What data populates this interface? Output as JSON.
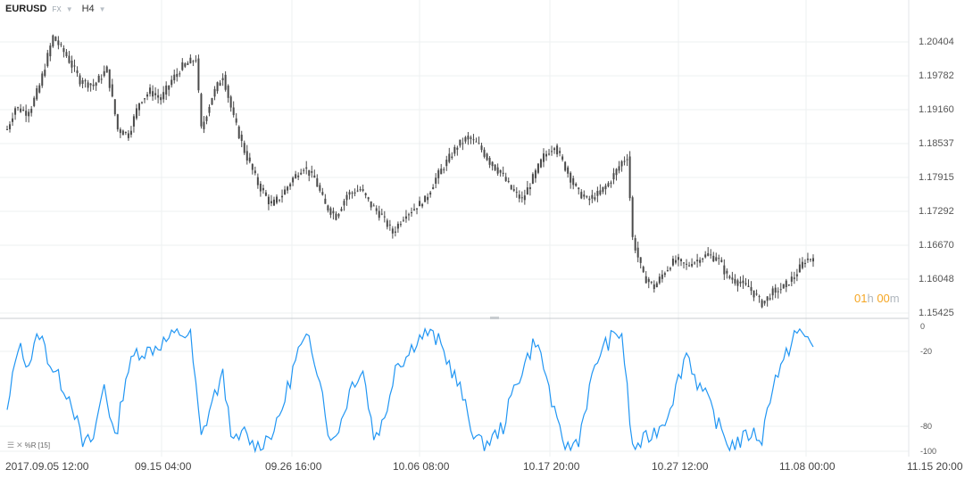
{
  "header": {
    "symbol": "EURUSD",
    "source": "FX",
    "timeframe": "H4"
  },
  "timer": {
    "hours": "01",
    "hours_unit": "h",
    "minutes": "00",
    "minutes_unit": "m"
  },
  "indicator": {
    "label": "%R [15]"
  },
  "colors": {
    "candle": "#4a4a4a",
    "oscillator": "#2196f3",
    "grid": "#eef0f2",
    "timer": "#f5a623"
  },
  "chart_data": [
    {
      "type": "candlestick",
      "ylim": [
        1.15425,
        1.21026
      ],
      "y_ticks": [
        "1.20404",
        "1.19782",
        "1.19160",
        "1.18537",
        "1.17915",
        "1.17292",
        "1.16670",
        "1.16048",
        "1.15425"
      ],
      "x_ticks": [
        "2017.09.05  12:00",
        "09.15  04:00",
        "09.26  16:00",
        "10.06  08:00",
        "10.17  20:00",
        "10.27  12:00",
        "11.08  00:00",
        "11.15  20:00"
      ],
      "anchors": [
        [
          0,
          1.188
        ],
        [
          3,
          1.192
        ],
        [
          8,
          1.191
        ],
        [
          12,
          1.196
        ],
        [
          17,
          1.205
        ],
        [
          22,
          1.2015
        ],
        [
          27,
          1.197
        ],
        [
          32,
          1.196
        ],
        [
          37,
          1.199
        ],
        [
          41,
          1.188
        ],
        [
          45,
          1.187
        ],
        [
          49,
          1.193
        ],
        [
          53,
          1.195
        ],
        [
          57,
          1.1935
        ],
        [
          61,
          1.197
        ],
        [
          65,
          1.1995
        ],
        [
          70,
          1.201
        ],
        [
          72,
          1.188
        ],
        [
          76,
          1.194
        ],
        [
          80,
          1.198
        ],
        [
          84,
          1.19
        ],
        [
          88,
          1.184
        ],
        [
          93,
          1.178
        ],
        [
          98,
          1.174
        ],
        [
          102,
          1.176
        ],
        [
          106,
          1.179
        ],
        [
          110,
          1.181
        ],
        [
          114,
          1.179
        ],
        [
          118,
          1.174
        ],
        [
          122,
          1.172
        ],
        [
          126,
          1.176
        ],
        [
          131,
          1.177
        ],
        [
          135,
          1.174
        ],
        [
          139,
          1.172
        ],
        [
          143,
          1.169
        ],
        [
          147,
          1.172
        ],
        [
          151,
          1.1735
        ],
        [
          155,
          1.175
        ],
        [
          159,
          1.179
        ],
        [
          163,
          1.182
        ],
        [
          167,
          1.185
        ],
        [
          171,
          1.1865
        ],
        [
          175,
          1.185
        ],
        [
          179,
          1.182
        ],
        [
          183,
          1.18
        ],
        [
          187,
          1.177
        ],
        [
          191,
          1.175
        ],
        [
          195,
          1.179
        ],
        [
          199,
          1.183
        ],
        [
          203,
          1.185
        ],
        [
          207,
          1.181
        ],
        [
          211,
          1.177
        ],
        [
          215,
          1.175
        ],
        [
          219,
          1.176
        ],
        [
          223,
          1.178
        ],
        [
          228,
          1.182
        ],
        [
          230,
          1.183
        ],
        [
          232,
          1.168
        ],
        [
          236,
          1.161
        ],
        [
          240,
          1.159
        ],
        [
          244,
          1.162
        ],
        [
          248,
          1.164
        ],
        [
          252,
          1.163
        ],
        [
          256,
          1.164
        ],
        [
          260,
          1.165
        ],
        [
          264,
          1.164
        ],
        [
          267,
          1.161
        ],
        [
          271,
          1.16
        ],
        [
          275,
          1.159
        ],
        [
          280,
          1.156
        ],
        [
          284,
          1.158
        ],
        [
          288,
          1.159
        ],
        [
          292,
          1.161
        ],
        [
          296,
          1.164
        ],
        [
          299,
          1.1645
        ]
      ]
    },
    {
      "type": "line",
      "name": "%R [15]",
      "ylim": [
        -100,
        0
      ],
      "y_ticks": [
        0,
        -20,
        -80,
        -100
      ],
      "anchors": [
        [
          0,
          -70
        ],
        [
          4,
          -15
        ],
        [
          8,
          -30
        ],
        [
          12,
          -5
        ],
        [
          16,
          -30
        ],
        [
          20,
          -45
        ],
        [
          24,
          -60
        ],
        [
          28,
          -95
        ],
        [
          32,
          -90
        ],
        [
          36,
          -45
        ],
        [
          40,
          -92
        ],
        [
          44,
          -40
        ],
        [
          48,
          -20
        ],
        [
          52,
          -20
        ],
        [
          56,
          -15
        ],
        [
          60,
          -10
        ],
        [
          64,
          -5
        ],
        [
          68,
          -8
        ],
        [
          72,
          -90
        ],
        [
          76,
          -60
        ],
        [
          80,
          -40
        ],
        [
          84,
          -95
        ],
        [
          88,
          -85
        ],
        [
          92,
          -98
        ],
        [
          96,
          -90
        ],
        [
          100,
          -80
        ],
        [
          104,
          -50
        ],
        [
          108,
          -20
        ],
        [
          112,
          -10
        ],
        [
          116,
          -40
        ],
        [
          120,
          -95
        ],
        [
          124,
          -75
        ],
        [
          128,
          -45
        ],
        [
          132,
          -35
        ],
        [
          136,
          -88
        ],
        [
          140,
          -75
        ],
        [
          144,
          -30
        ],
        [
          148,
          -25
        ],
        [
          152,
          -10
        ],
        [
          156,
          -5
        ],
        [
          160,
          -12
        ],
        [
          164,
          -30
        ],
        [
          168,
          -50
        ],
        [
          172,
          -80
        ],
        [
          176,
          -95
        ],
        [
          180,
          -90
        ],
        [
          184,
          -80
        ],
        [
          188,
          -50
        ],
        [
          192,
          -30
        ],
        [
          196,
          -10
        ],
        [
          200,
          -40
        ],
        [
          204,
          -80
        ],
        [
          208,
          -98
        ],
        [
          212,
          -90
        ],
        [
          216,
          -50
        ],
        [
          220,
          -20
        ],
        [
          224,
          -10
        ],
        [
          228,
          -5
        ],
        [
          232,
          -98
        ],
        [
          236,
          -92
        ],
        [
          240,
          -85
        ],
        [
          244,
          -75
        ],
        [
          248,
          -50
        ],
        [
          252,
          -20
        ],
        [
          256,
          -45
        ],
        [
          260,
          -60
        ],
        [
          264,
          -80
        ],
        [
          268,
          -95
        ],
        [
          272,
          -92
        ],
        [
          276,
          -85
        ],
        [
          280,
          -90
        ],
        [
          284,
          -45
        ],
        [
          288,
          -30
        ],
        [
          292,
          -5
        ],
        [
          296,
          -8
        ],
        [
          299,
          -15
        ]
      ]
    }
  ]
}
